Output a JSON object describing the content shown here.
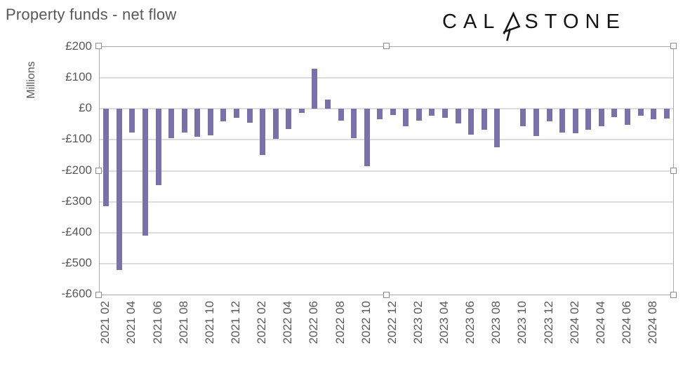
{
  "header": {
    "title": "Property funds - net flow",
    "logo": {
      "left": "CAL",
      "right": "STONE",
      "icon": "calastone-arrow-icon"
    }
  },
  "chart_data": {
    "type": "bar",
    "title": "Property funds - net flow",
    "ylabel": "Millions",
    "currency": "£",
    "ylim": [
      -600,
      200
    ],
    "y_tick_interval": 100,
    "y_tick_labels": [
      "£200",
      "£100",
      "£0",
      "-£100",
      "-£200",
      "-£300",
      "-£400",
      "-£500",
      "-£600"
    ],
    "grid": "horizontal",
    "legend": "none",
    "bar_color": "#7a70ac",
    "gridline_color": "#dcdcdc",
    "x_tick_every": 2,
    "categories": [
      "2021 02",
      "2021 03",
      "2021 04",
      "2021 05",
      "2021 06",
      "2021 07",
      "2021 08",
      "2021 09",
      "2021 10",
      "2021 11",
      "2021 12",
      "2022 01",
      "2022 02",
      "2022 03",
      "2022 04",
      "2022 05",
      "2022 06",
      "2022 07",
      "2022 08",
      "2022 09",
      "2022 10",
      "2022 11",
      "2022 12",
      "2023 01",
      "2023 02",
      "2023 03",
      "2023 04",
      "2023 05",
      "2023 06",
      "2023 07",
      "2023 08",
      "2023 09",
      "2023 10",
      "2023 11",
      "2023 12",
      "2024 01",
      "2024 02",
      "2024 03",
      "2024 04",
      "2024 05",
      "2024 06",
      "2024 07",
      "2024 08",
      "2024 09"
    ],
    "values": [
      -315,
      -520,
      -76,
      -410,
      -247,
      -95,
      -76,
      -91,
      -85,
      -40,
      -29,
      -44,
      -148,
      -98,
      -66,
      -13,
      130,
      31,
      -38,
      -95,
      -185,
      -34,
      -20,
      -55,
      -37,
      -21,
      -30,
      -48,
      -83,
      -67,
      -124,
      0,
      -55,
      -88,
      -40,
      -77,
      -79,
      -67,
      -55,
      -27,
      -52,
      -22,
      -34,
      -32
    ]
  },
  "ui": {
    "plot_selected": true,
    "selection_handle_count": 8
  }
}
